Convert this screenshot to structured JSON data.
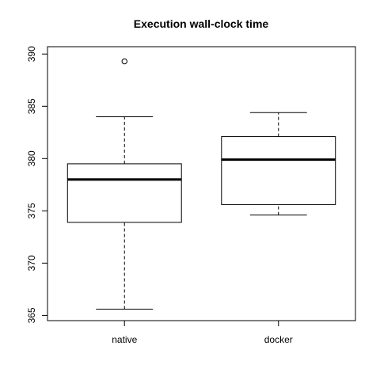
{
  "chart_data": {
    "type": "boxplot",
    "title": "Execution wall-clock time",
    "xlabel": "",
    "ylabel": "",
    "ylim": [
      364.5,
      390.7
    ],
    "yticks": [
      365,
      370,
      375,
      380,
      385,
      390
    ],
    "categories": [
      "native",
      "docker"
    ],
    "boxes": [
      {
        "name": "native",
        "whisker_low": 365.6,
        "q1": 373.9,
        "median": 378.0,
        "q3": 379.5,
        "whisker_high": 384.0,
        "outliers": [
          389.3
        ]
      },
      {
        "name": "docker",
        "whisker_low": 374.6,
        "q1": 375.6,
        "median": 379.9,
        "q3": 382.1,
        "whisker_high": 384.4,
        "outliers": []
      }
    ],
    "grid": false,
    "legend": "none"
  }
}
